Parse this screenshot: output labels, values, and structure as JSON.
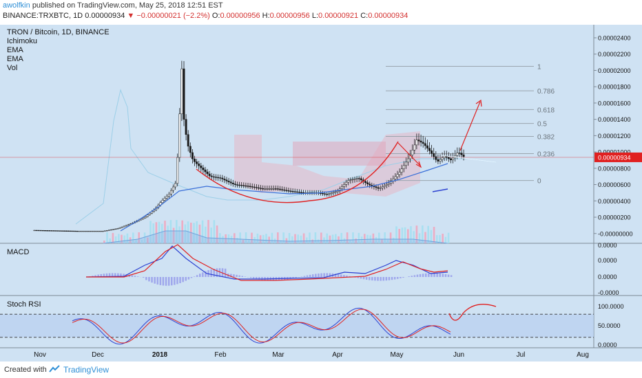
{
  "header": {
    "author": "awolfkin",
    "published_text": "published on TradingView.com, May 25, 2018 12:51 EST",
    "symbol_line": "BINANCE:TRXBTC, 1D",
    "last": "0.00000934",
    "change": "−0.00000021 (−2.2%)",
    "open_label": "O:",
    "open": "0.00000956",
    "high_label": "H:",
    "high": "0.00000956",
    "low_label": "L:",
    "low": "0.00000921",
    "close_label": "C:",
    "close": "0.00000934"
  },
  "legend": {
    "title": "TRON / Bitcoin, 1D, BINANCE",
    "ind1": "Ichimoku",
    "ind2": "EMA",
    "ind3": "EMA",
    "ind4": "Vol"
  },
  "panes": {
    "macd_label": "MACD",
    "stoch_label": "Stoch RSI"
  },
  "chart_data": {
    "type": "candlestick",
    "title": "TRON / Bitcoin, 1D, BINANCE",
    "price_axis_ticks": [
      "0.00002400",
      "0.00002200",
      "0.00002000",
      "0.00001800",
      "0.00001600",
      "0.00001400",
      "0.00001200",
      "0.00001000",
      "0.00000800",
      "0.00000600",
      "0.00000400",
      "0.00000200",
      "-0.00000000"
    ],
    "price_axis_tick_values": [
      2.4e-05,
      2.2e-05,
      2e-05,
      1.8e-05,
      1.6e-05,
      1.4e-05,
      1.2e-05,
      1e-05,
      8e-06,
      6e-06,
      4e-06,
      2e-06,
      0
    ],
    "current_price_label": "0.00000934",
    "current_price": 9.34e-06,
    "macd_axis_ticks": [
      "0.0000",
      "0.0000",
      "0.0000",
      "-0.0000"
    ],
    "stoch_axis_ticks": [
      "100.0000",
      "50.0000",
      "0.0000"
    ],
    "stoch_tick_values": [
      100,
      50,
      0
    ],
    "stoch_bands": [
      80,
      20
    ],
    "time_axis_labels": [
      "Nov",
      "Dec",
      "2018",
      "Feb",
      "Mar",
      "Apr",
      "May",
      "Jun",
      "Jul",
      "Aug"
    ],
    "fib_levels": [
      {
        "label": "1",
        "value": 2.05e-05
      },
      {
        "label": "0.786",
        "value": 1.75e-05
      },
      {
        "label": "0.618",
        "value": 1.52e-05
      },
      {
        "label": "0.5",
        "value": 1.35e-05
      },
      {
        "label": "0.382",
        "value": 1.19e-05
      },
      {
        "label": "0.236",
        "value": 9.8e-06
      },
      {
        "label": "0",
        "value": 6.5e-06
      }
    ],
    "close_path": [
      {
        "t": 0,
        "p": 4e-07
      },
      {
        "t": 60,
        "p": 3e-07
      },
      {
        "t": 100,
        "p": 3e-07
      },
      {
        "t": 120,
        "p": 6e-07
      },
      {
        "t": 140,
        "p": 1.2e-06
      },
      {
        "t": 160,
        "p": 2e-06
      },
      {
        "t": 175,
        "p": 3e-06
      },
      {
        "t": 185,
        "p": 4e-06
      },
      {
        "t": 195,
        "p": 4.8e-06
      },
      {
        "t": 205,
        "p": 6.2e-06
      },
      {
        "t": 210,
        "p": 1.2e-05
      },
      {
        "t": 213,
        "p": 2.2e-05
      },
      {
        "t": 217,
        "p": 1.4e-05
      },
      {
        "t": 222,
        "p": 1.1e-05
      },
      {
        "t": 230,
        "p": 9e-06
      },
      {
        "t": 240,
        "p": 8.2e-06
      },
      {
        "t": 255,
        "p": 7e-06
      },
      {
        "t": 270,
        "p": 6.8e-06
      },
      {
        "t": 290,
        "p": 6e-06
      },
      {
        "t": 310,
        "p": 5.8e-06
      },
      {
        "t": 330,
        "p": 5.5e-06
      },
      {
        "t": 350,
        "p": 5.5e-06
      },
      {
        "t": 370,
        "p": 5.2e-06
      },
      {
        "t": 390,
        "p": 5e-06
      },
      {
        "t": 410,
        "p": 5e-06
      },
      {
        "t": 425,
        "p": 4.8e-06
      },
      {
        "t": 440,
        "p": 5.2e-06
      },
      {
        "t": 455,
        "p": 6.5e-06
      },
      {
        "t": 470,
        "p": 6.8e-06
      },
      {
        "t": 485,
        "p": 6e-06
      },
      {
        "t": 500,
        "p": 5.5e-06
      },
      {
        "t": 515,
        "p": 6.2e-06
      },
      {
        "t": 530,
        "p": 7.5e-06
      },
      {
        "t": 545,
        "p": 9.5e-06
      },
      {
        "t": 555,
        "p": 1.15e-05
      },
      {
        "t": 565,
        "p": 1.1e-05
      },
      {
        "t": 575,
        "p": 1e-05
      },
      {
        "t": 585,
        "p": 8.8e-06
      },
      {
        "t": 595,
        "p": 9.5e-06
      },
      {
        "t": 605,
        "p": 9e-06
      },
      {
        "t": 615,
        "p": 1e-05
      },
      {
        "t": 625,
        "p": 9.3e-06
      }
    ],
    "colors": {
      "up": "#1a1a1a",
      "down": "#1a1a1a",
      "ema_fast": "#3a6fd8",
      "ema_slow": "#ffffff",
      "macd": "#2b3fd0",
      "signal": "#e02020",
      "stoch_k": "#2b3fd0",
      "stoch_d": "#e02020",
      "fib": "#9aa4ae",
      "cloud": "#e6b8c6",
      "annotation": "#e02020",
      "price_line": "#e02020"
    }
  },
  "footer": {
    "created_with": "Created with",
    "brand": "TradingView"
  }
}
